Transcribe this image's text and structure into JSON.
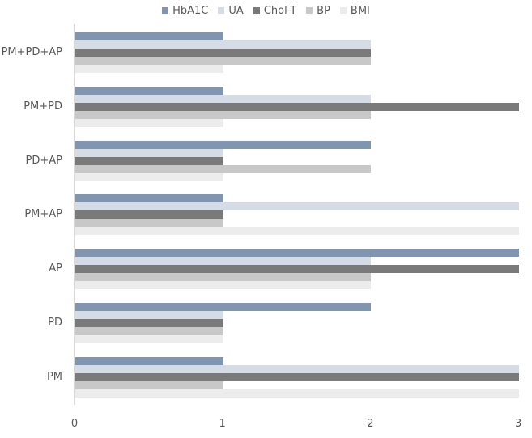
{
  "chart_data": {
    "type": "bar",
    "orientation": "horizontal",
    "title": "",
    "xlabel": "",
    "ylabel": "",
    "xlim": [
      0,
      3
    ],
    "x_ticks": [
      "0",
      "1",
      "2",
      "3"
    ],
    "grid": false,
    "legend_position": "top",
    "categories": [
      "PM+PD+AP",
      "PM+PD",
      "PD+AP",
      "PM+AP",
      "AP",
      "PD",
      "PM"
    ],
    "series": [
      {
        "name": "HbA1C",
        "color": "#8096b0",
        "values": [
          1,
          1,
          2,
          1,
          3,
          2,
          1
        ]
      },
      {
        "name": "UA",
        "color": "#d5dce6",
        "values": [
          2,
          2,
          1,
          3,
          2,
          1,
          3
        ]
      },
      {
        "name": "Chol-T",
        "color": "#7a7a7a",
        "values": [
          2,
          3,
          1,
          1,
          3,
          1,
          3
        ]
      },
      {
        "name": "BP",
        "color": "#c8c8c8",
        "values": [
          2,
          2,
          2,
          1,
          2,
          1,
          1
        ]
      },
      {
        "name": "BMI",
        "color": "#ececec",
        "values": [
          1,
          1,
          1,
          3,
          2,
          1,
          3
        ]
      }
    ]
  }
}
